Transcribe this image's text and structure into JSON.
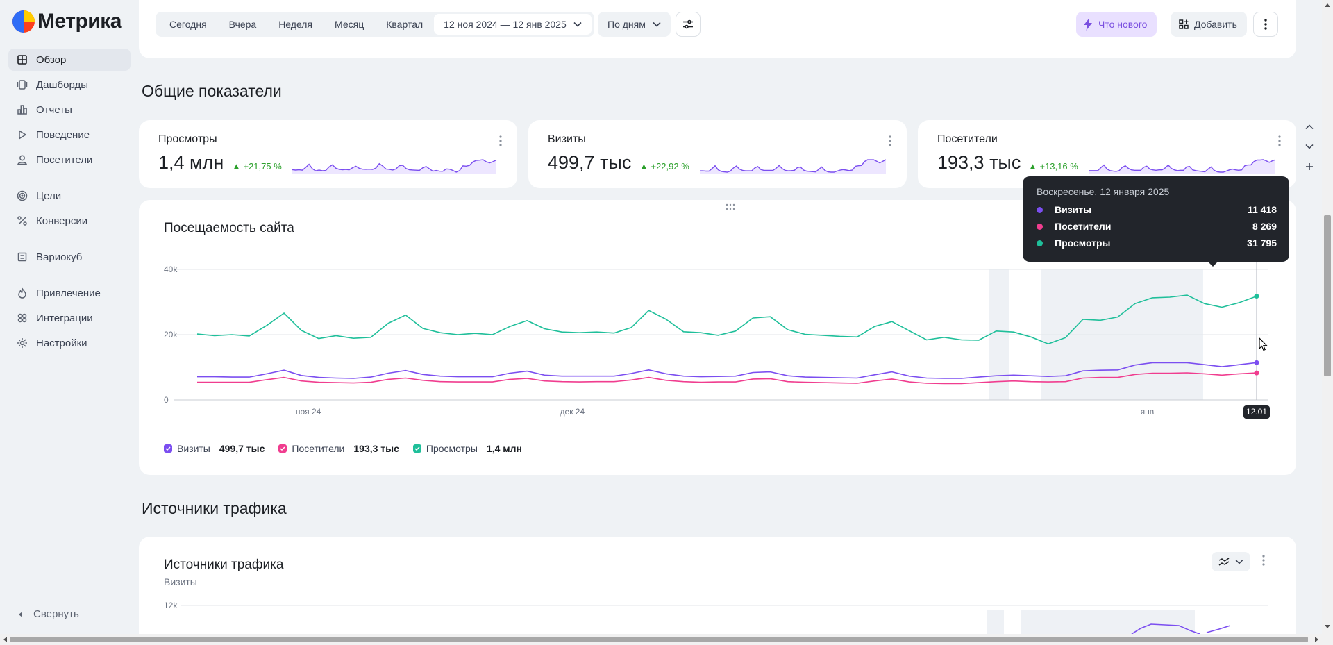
{
  "logo": {
    "text": "Метрика"
  },
  "sidebar": {
    "items": [
      {
        "label": "Обзор",
        "icon": "grid-icon",
        "active": true
      },
      {
        "label": "Дашборды",
        "icon": "dashboards-icon"
      },
      {
        "label": "Отчеты",
        "icon": "bar-chart-icon"
      },
      {
        "label": "Поведение",
        "icon": "play-icon"
      },
      {
        "label": "Посетители",
        "icon": "user-icon"
      },
      {
        "label": "Цели",
        "icon": "target-icon"
      },
      {
        "label": "Конверсии",
        "icon": "percent-icon"
      },
      {
        "label": "Вариокуб",
        "icon": "cube-icon"
      },
      {
        "label": "Привлечение",
        "icon": "flame-icon"
      },
      {
        "label": "Интеграции",
        "icon": "puzzle-icon"
      },
      {
        "label": "Настройки",
        "icon": "gear-icon"
      }
    ],
    "collapse_label": "Свернуть"
  },
  "toolbar": {
    "periods": [
      "Сегодня",
      "Вчера",
      "Неделя",
      "Месяц",
      "Квартал"
    ],
    "date_range": "12 ноя 2024 — 12 янв 2025",
    "grouping": "По дням",
    "whats_new": "Что нового",
    "add": "Добавить"
  },
  "overview": {
    "title": "Общие показатели",
    "kpis": [
      {
        "label": "Просмотры",
        "value": "1,4 млн",
        "delta": "▲ +21,75 %"
      },
      {
        "label": "Визиты",
        "value": "499,7 тыс",
        "delta": "▲ +22,92 %"
      },
      {
        "label": "Посетители",
        "value": "193,3 тыс",
        "delta": "▲ +13,16 %"
      }
    ]
  },
  "attendance": {
    "title": "Посещаемость сайта",
    "legend": [
      {
        "name": "Визиты",
        "total": "499,7 тыс",
        "color": "#7b4ef0"
      },
      {
        "name": "Посетители",
        "total": "193,3 тыс",
        "color": "#f03d8f"
      },
      {
        "name": "Просмотры",
        "total": "1,4 млн",
        "color": "#1fbf9a"
      }
    ],
    "tooltip": {
      "date": "Воскресенье, 12 января 2025",
      "rows": [
        {
          "name": "Визиты",
          "value": "11 418",
          "color": "#7b4ef0"
        },
        {
          "name": "Посетители",
          "value": "8 269",
          "color": "#f03d8f"
        },
        {
          "name": "Просмотры",
          "value": "31 795",
          "color": "#1fbf9a"
        }
      ]
    },
    "hover_label": "12.01"
  },
  "traffic": {
    "section_title": "Источники трафика",
    "card_title": "Источники трафика",
    "card_subtitle": "Визиты",
    "y_tick": "12k"
  },
  "chart_data": [
    {
      "type": "line",
      "title": "Посещаемость сайта",
      "x_tick_labels": [
        "ноя 24",
        "дек 24",
        "янв"
      ],
      "y_tick_labels": [
        "0",
        "20k",
        "40k"
      ],
      "ylim": [
        0,
        40000
      ],
      "grid": true,
      "legend_position": "bottom-left",
      "x": [
        "12.11",
        "13.11",
        "14.11",
        "15.11",
        "16.11",
        "17.11",
        "18.11",
        "19.11",
        "20.11",
        "21.11",
        "22.11",
        "23.11",
        "24.11",
        "25.11",
        "26.11",
        "27.11",
        "28.11",
        "29.11",
        "30.11",
        "01.12",
        "02.12",
        "03.12",
        "04.12",
        "05.12",
        "06.12",
        "07.12",
        "08.12",
        "09.12",
        "10.12",
        "11.12",
        "12.12",
        "13.12",
        "14.12",
        "15.12",
        "16.12",
        "17.12",
        "18.12",
        "19.12",
        "20.12",
        "21.12",
        "22.12",
        "23.12",
        "24.12",
        "25.12",
        "26.12",
        "27.12",
        "28.12",
        "29.12",
        "30.12",
        "31.12",
        "01.01",
        "02.01",
        "03.01",
        "04.01",
        "05.01",
        "06.01",
        "07.01",
        "08.01",
        "09.01",
        "10.01",
        "11.01",
        "12.01"
      ],
      "series": [
        {
          "name": "Просмотры",
          "color": "#1fbf9a",
          "values": [
            20200,
            19700,
            20000,
            19600,
            22800,
            26600,
            21300,
            18800,
            19700,
            18900,
            19200,
            23500,
            26000,
            21900,
            20600,
            20000,
            20400,
            20000,
            22500,
            24300,
            21800,
            20800,
            20600,
            20800,
            20500,
            22200,
            27400,
            24700,
            20900,
            20600,
            19800,
            21100,
            25100,
            25500,
            21500,
            20100,
            19800,
            19500,
            19300,
            22500,
            24000,
            21200,
            18400,
            19200,
            18400,
            18300,
            21100,
            20800,
            19300,
            17200,
            19100,
            24700,
            24400,
            25400,
            29500,
            31300,
            31500,
            32100,
            29500,
            28400,
            29800,
            31795
          ]
        },
        {
          "name": "Визиты",
          "color": "#7b4ef0",
          "values": [
            7100,
            7100,
            7000,
            7000,
            8000,
            9100,
            7500,
            6900,
            6700,
            6600,
            7000,
            8200,
            9000,
            7800,
            7300,
            7100,
            7100,
            7100,
            8200,
            8800,
            7600,
            7300,
            7300,
            7300,
            7300,
            8100,
            9200,
            8000,
            7300,
            7100,
            7200,
            7300,
            8400,
            8600,
            7400,
            7000,
            6900,
            6800,
            6700,
            7700,
            8600,
            7300,
            6700,
            6600,
            6600,
            7000,
            7400,
            7600,
            7400,
            7200,
            7400,
            8900,
            9100,
            9200,
            10700,
            11400,
            11400,
            11400,
            10800,
            10200,
            10800,
            11418
          ]
        },
        {
          "name": "Посетители",
          "color": "#f03d8f",
          "values": [
            5400,
            5400,
            5400,
            5400,
            6200,
            6900,
            5800,
            5400,
            5300,
            5200,
            5400,
            6300,
            6700,
            6000,
            5600,
            5500,
            5500,
            5500,
            6300,
            6600,
            5800,
            5600,
            5500,
            5600,
            5600,
            6100,
            6900,
            6000,
            5600,
            5400,
            5500,
            5500,
            6400,
            6500,
            5600,
            5400,
            5300,
            5200,
            5100,
            5800,
            6400,
            5500,
            5100,
            5000,
            5000,
            5300,
            5600,
            5800,
            5600,
            5500,
            5600,
            6700,
            6900,
            6900,
            7800,
            8200,
            8200,
            8300,
            8000,
            7600,
            8000,
            8269
          ]
        }
      ]
    }
  ]
}
